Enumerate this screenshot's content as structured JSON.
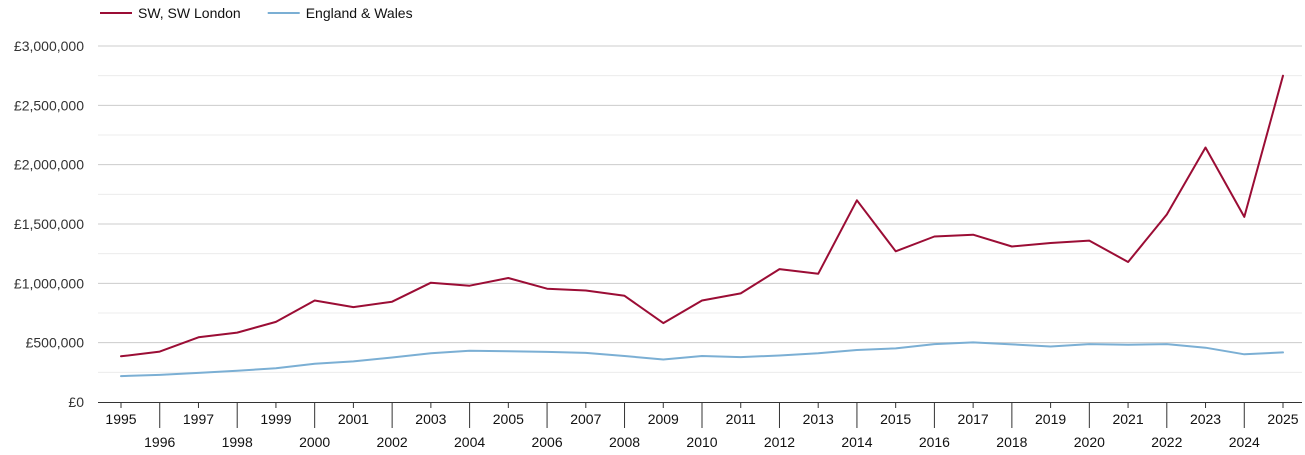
{
  "chart_data": {
    "type": "line",
    "title": "",
    "xlabel": "",
    "ylabel": "",
    "x": [
      1995,
      1996,
      1997,
      1998,
      1999,
      2000,
      2001,
      2002,
      2003,
      2004,
      2005,
      2006,
      2007,
      2008,
      2009,
      2010,
      2011,
      2012,
      2013,
      2014,
      2015,
      2016,
      2017,
      2018,
      2019,
      2020,
      2021,
      2022,
      2023,
      2024,
      2025
    ],
    "x_tick_labels": [
      "1995",
      "1996",
      "1997",
      "1998",
      "1999",
      "2000",
      "2001",
      "2002",
      "2003",
      "2004",
      "2005",
      "2006",
      "2007",
      "2008",
      "2009",
      "2010",
      "2011",
      "2012",
      "2013",
      "2014",
      "2015",
      "2016",
      "2017",
      "2018",
      "2019",
      "2020",
      "2021",
      "2022",
      "2023",
      "2024",
      "2025"
    ],
    "ylim": [
      0,
      3000000
    ],
    "y_ticks": [
      0,
      500000,
      1000000,
      1500000,
      2000000,
      2500000,
      3000000
    ],
    "y_tick_labels": [
      "£0",
      "£500,000",
      "£1,000,000",
      "£1,500,000",
      "£2,000,000",
      "£2,500,000",
      "£3,000,000"
    ],
    "grid": true,
    "legend_position": "top-left",
    "series": [
      {
        "name": "SW, SW London",
        "color": "#9b0d35",
        "values": [
          385000,
          425000,
          545000,
          585000,
          675000,
          855000,
          800000,
          845000,
          1005000,
          980000,
          1045000,
          955000,
          940000,
          895000,
          665000,
          855000,
          915000,
          1120000,
          1080000,
          1700000,
          1270000,
          1395000,
          1410000,
          1310000,
          1340000,
          1360000,
          1180000,
          1580000,
          2145000,
          1560000,
          2750000
        ]
      },
      {
        "name": "England & Wales",
        "color": "#7bafd4",
        "values": [
          218000,
          228000,
          245000,
          263000,
          285000,
          322000,
          342000,
          375000,
          410000,
          432000,
          428000,
          422000,
          414000,
          388000,
          358000,
          388000,
          378000,
          392000,
          410000,
          438000,
          452000,
          488000,
          502000,
          485000,
          468000,
          488000,
          482000,
          488000,
          458000,
          402000,
          418000
        ]
      }
    ]
  }
}
